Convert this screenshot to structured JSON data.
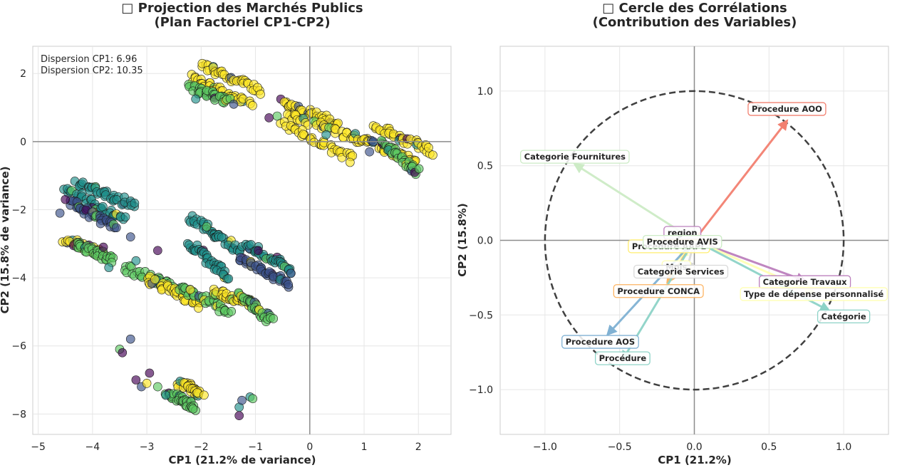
{
  "chart_data": [
    {
      "type": "scatter",
      "title_line1": "□ Projection des Marchés Publics",
      "title_line2": "(Plan Factoriel CP1-CP2)",
      "xlabel": "CP1 (21.2% de variance)",
      "ylabel": "CP2 (15.8% de variance)",
      "xlim": [
        -5.1,
        2.6
      ],
      "ylim": [
        -8.6,
        2.8
      ],
      "xticks": [
        -5,
        -4,
        -3,
        -2,
        -1,
        0,
        1,
        2
      ],
      "yticks": [
        2,
        0,
        -2,
        -4,
        -6,
        -8
      ],
      "grid": true,
      "annotations": [
        "Dispersion CP1: 6.96",
        "Dispersion CP2: 10.35"
      ],
      "colormap": [
        "#440154",
        "#3b528b",
        "#21918c",
        "#5ec962",
        "#fde725"
      ],
      "clusters": [
        {
          "x0": -2.0,
          "y0": 2.25,
          "x1": -0.9,
          "y1": 1.5,
          "color": "#fde725"
        },
        {
          "x0": -2.2,
          "y0": 1.9,
          "x1": -1.1,
          "y1": 1.1,
          "color": "#fde725"
        },
        {
          "x0": -2.2,
          "y0": 1.6,
          "x1": -1.5,
          "y1": 1.2,
          "color": "#5ec962"
        },
        {
          "x0": -0.5,
          "y0": 1.2,
          "x1": 0.5,
          "y1": 0.5,
          "color": "#fde725"
        },
        {
          "x0": -0.4,
          "y0": 0.8,
          "x1": 1.0,
          "y1": 0.0,
          "color": "#fde725"
        },
        {
          "x0": -0.5,
          "y0": 0.5,
          "x1": 0.8,
          "y1": -0.5,
          "color": "#fde725"
        },
        {
          "x0": 0.8,
          "y0": 0.2,
          "x1": 2.0,
          "y1": -0.6,
          "color": "#fde725"
        },
        {
          "x0": 1.2,
          "y0": 0.45,
          "x1": 2.25,
          "y1": -0.3,
          "color": "#fde725"
        },
        {
          "x0": 1.3,
          "y0": 0.0,
          "x1": 2.0,
          "y1": -0.9,
          "color": "#5ec962"
        },
        {
          "x0": -4.3,
          "y0": -1.2,
          "x1": -3.2,
          "y1": -1.9,
          "color": "#21918c"
        },
        {
          "x0": -4.5,
          "y0": -1.4,
          "x1": -3.4,
          "y1": -2.3,
          "color": "#21918c"
        },
        {
          "x0": -4.4,
          "y0": -1.8,
          "x1": -3.6,
          "y1": -2.5,
          "color": "#3b528b"
        },
        {
          "x0": -4.5,
          "y0": -2.9,
          "x1": -3.8,
          "y1": -3.3,
          "color": "#fde725"
        },
        {
          "x0": -4.3,
          "y0": -3.0,
          "x1": -3.6,
          "y1": -3.5,
          "color": "#5ec962"
        },
        {
          "x0": -2.2,
          "y0": -2.2,
          "x1": -1.3,
          "y1": -3.2,
          "color": "#21918c"
        },
        {
          "x0": -2.2,
          "y0": -3.0,
          "x1": -1.5,
          "y1": -4.0,
          "color": "#21918c"
        },
        {
          "x0": -1.2,
          "y0": -3.0,
          "x1": -0.3,
          "y1": -3.8,
          "color": "#21918c"
        },
        {
          "x0": -1.3,
          "y0": -3.4,
          "x1": -0.4,
          "y1": -4.2,
          "color": "#3b528b"
        },
        {
          "x0": -3.4,
          "y0": -3.7,
          "x1": -2.3,
          "y1": -4.4,
          "color": "#5ec962"
        },
        {
          "x0": -3.0,
          "y0": -4.0,
          "x1": -2.0,
          "y1": -4.8,
          "color": "#fde725"
        },
        {
          "x0": -2.4,
          "y0": -4.3,
          "x1": -1.5,
          "y1": -5.0,
          "color": "#5ec962"
        },
        {
          "x0": -1.8,
          "y0": -4.4,
          "x1": -1.0,
          "y1": -4.8,
          "color": "#fde725"
        },
        {
          "x0": -1.3,
          "y0": -4.5,
          "x1": -0.7,
          "y1": -5.3,
          "color": "#5ec962"
        },
        {
          "x0": -2.4,
          "y0": -7.1,
          "x1": -2.0,
          "y1": -7.4,
          "color": "#fde725"
        },
        {
          "x0": -2.6,
          "y0": -7.4,
          "x1": -2.1,
          "y1": -7.8,
          "color": "#5ec962"
        }
      ],
      "scattered_points": [
        {
          "x": -3.5,
          "y": -6.1,
          "color": "#5ec962"
        },
        {
          "x": -3.45,
          "y": -6.2,
          "color": "#440154"
        },
        {
          "x": -3.3,
          "y": -5.8,
          "color": "#3b528b"
        },
        {
          "x": -3.2,
          "y": -7.0,
          "color": "#440154"
        },
        {
          "x": -3.1,
          "y": -7.2,
          "color": "#3b528b"
        },
        {
          "x": -2.95,
          "y": -6.8,
          "color": "#440154"
        },
        {
          "x": -3.0,
          "y": -7.1,
          "color": "#fde725"
        },
        {
          "x": -2.8,
          "y": -7.2,
          "color": "#5ec962"
        },
        {
          "x": -2.65,
          "y": -7.45,
          "color": "#21918c"
        },
        {
          "x": -1.3,
          "y": -7.8,
          "color": "#21918c"
        },
        {
          "x": -1.3,
          "y": -8.05,
          "color": "#440154"
        },
        {
          "x": -1.1,
          "y": -7.5,
          "color": "#21918c"
        },
        {
          "x": -1.05,
          "y": -7.55,
          "color": "#5ec962"
        },
        {
          "x": -1.25,
          "y": -7.6,
          "color": "#3b528b"
        },
        {
          "x": -2.2,
          "y": -4.35,
          "color": "#fde725"
        },
        {
          "x": -0.95,
          "y": -3.2,
          "color": "#440154"
        },
        {
          "x": -3.2,
          "y": -3.5,
          "color": "#21918c"
        },
        {
          "x": -3.3,
          "y": -2.8,
          "color": "#3b528b"
        },
        {
          "x": -2.8,
          "y": -3.2,
          "color": "#440154"
        },
        {
          "x": -1.9,
          "y": -2.5,
          "color": "#5ec962"
        },
        {
          "x": -4.6,
          "y": -2.1,
          "color": "#3b528b"
        },
        {
          "x": -4.5,
          "y": -1.7,
          "color": "#440154"
        },
        {
          "x": -3.7,
          "y": -3.7,
          "color": "#21918c"
        },
        {
          "x": -3.8,
          "y": -3.1,
          "color": "#440154"
        },
        {
          "x": -0.6,
          "y": 0.75,
          "color": "#5ec962"
        },
        {
          "x": -0.75,
          "y": 0.7,
          "color": "#440154"
        },
        {
          "x": -2.1,
          "y": 1.25,
          "color": "#21918c"
        },
        {
          "x": -1.4,
          "y": 1.1,
          "color": "#3b528b"
        },
        {
          "x": 0.3,
          "y": 0.2,
          "color": "#21918c"
        },
        {
          "x": 1.1,
          "y": -0.3,
          "color": "#3b528b"
        }
      ]
    },
    {
      "type": "correlation-circle",
      "title_line1": "□ Cercle des Corrélations",
      "title_line2": "(Contribution des Variables)",
      "xlabel": "CP1 (21.2%)",
      "ylabel": "CP2 (15.8%)",
      "xlim": [
        -1.3,
        1.3
      ],
      "ylim": [
        -1.3,
        1.3
      ],
      "xticks": [
        -1.0,
        -0.5,
        0.0,
        0.5,
        1.0
      ],
      "yticks": [
        1.0,
        0.5,
        0.0,
        -0.5,
        -1.0
      ],
      "tick_labels": [
        "−1.0",
        "−0.5",
        "0.0",
        "0.5",
        "1.0"
      ],
      "grid": true,
      "circle_radius": 1.0,
      "variables": [
        {
          "name": "Procedure AOO",
          "x": 0.62,
          "y": 0.8,
          "color": "#f28070",
          "label_x": 0.62,
          "label_y": 0.88
        },
        {
          "name": "Categorie Fournitures",
          "x": -0.8,
          "y": 0.51,
          "color": "#ccebc5",
          "label_x": -0.8,
          "label_y": 0.56
        },
        {
          "name": "region",
          "x": -0.06,
          "y": 0.05,
          "color": "#bc80bd",
          "label_x": -0.08,
          "label_y": 0.05
        },
        {
          "name": "Procedure AAPL",
          "x": -0.05,
          "y": -0.02,
          "color": "#ffed6f",
          "label_x": -0.17,
          "label_y": -0.04
        },
        {
          "name": "Procedure AVIS",
          "x": -0.05,
          "y": -0.01,
          "color": "#ccebc5",
          "label_x": -0.08,
          "label_y": -0.01
        },
        {
          "name": "Categorie Travaux",
          "x": 0.74,
          "y": -0.27,
          "color": "#bc80bd",
          "label_x": 0.74,
          "label_y": -0.28
        },
        {
          "name": "Mois",
          "x": -0.1,
          "y": -0.12,
          "color": "#ffffb3",
          "label_x": -0.12,
          "label_y": -0.18
        },
        {
          "name": "Categorie Services",
          "x": -0.05,
          "y": -0.2,
          "color": "#d9d9d9",
          "label_x": -0.09,
          "label_y": -0.21
        },
        {
          "name": "Procedure CONCA",
          "x": -0.18,
          "y": -0.28,
          "color": "#fdb462",
          "label_x": -0.24,
          "label_y": -0.34
        },
        {
          "name": "Type de dépense personnalisé",
          "x": 0.8,
          "y": -0.35,
          "color": "#ffffb3",
          "label_x": 0.8,
          "label_y": -0.36
        },
        {
          "name": "Catégorie",
          "x": 0.9,
          "y": -0.47,
          "color": "#8dd3c7",
          "label_x": 1.0,
          "label_y": -0.51
        },
        {
          "name": "Procedure AOS",
          "x": -0.58,
          "y": -0.63,
          "color": "#80b1d3",
          "label_x": -0.63,
          "label_y": -0.68
        },
        {
          "name": "Procédure",
          "x": -0.48,
          "y": -0.8,
          "color": "#8dd3c7",
          "label_x": -0.48,
          "label_y": -0.79
        }
      ]
    }
  ]
}
